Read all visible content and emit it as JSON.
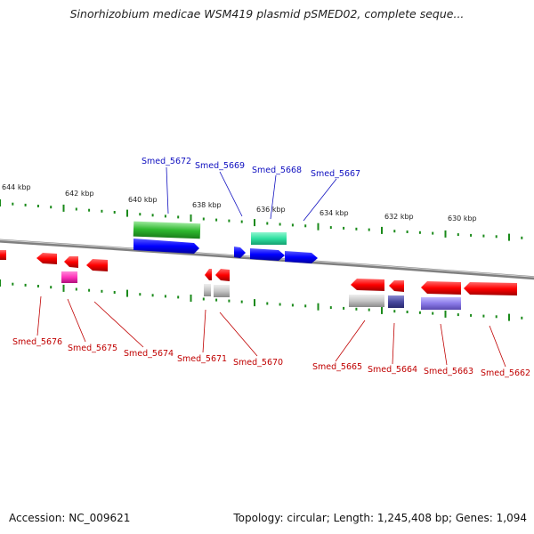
{
  "title": "Sinorhizobium medicae WSM419 plasmid pSMED02, complete seque...",
  "accession": "Accession: NC_009621",
  "summary": "Topology: circular; Length: 1,245,408 bp; Genes: 1,094",
  "scale_labels": [
    "644 kbp",
    "642 kbp",
    "640 kbp",
    "638 kbp",
    "636 kbp",
    "634 kbp",
    "632 kbp",
    "630 kbp"
  ],
  "top_gene_labels": [
    "Smed_5672",
    "Smed_5669",
    "Smed_5668",
    "Smed_5667"
  ],
  "bottom_gene_labels": [
    "Smed_5676",
    "Smed_5675",
    "Smed_5674",
    "Smed_5671",
    "Smed_5670",
    "Smed_5665",
    "Smed_5664",
    "Smed_5663",
    "Smed_5662"
  ],
  "colors": {
    "backbone": "#808080",
    "top_label": "#1010c0",
    "bottom_label": "#c00000",
    "tick": "#1a8a1a"
  }
}
